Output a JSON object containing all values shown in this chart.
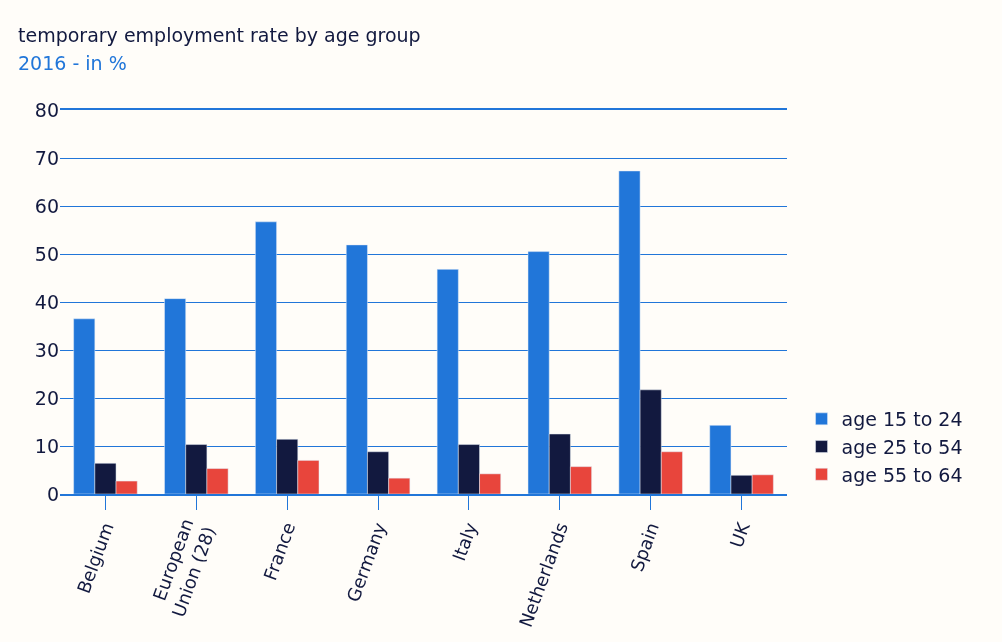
{
  "chart_data": {
    "type": "bar",
    "title": "temporary employment rate by age group",
    "subtitle": "2016 - in %",
    "categories": [
      "Belgium",
      "European\nUnion (28)",
      "France",
      "Germany",
      "Italy",
      "Netherlands",
      "Spain",
      "UK"
    ],
    "series": [
      {
        "name": "age 15 to 24",
        "color": "#2176d9",
        "values": [
          36.5,
          40.7,
          56.7,
          51.9,
          46.8,
          50.5,
          67.3,
          14.3
        ]
      },
      {
        "name": "age 25 to 54",
        "color": "#12193f",
        "values": [
          6.4,
          10.3,
          11.4,
          8.8,
          10.3,
          12.5,
          21.7,
          3.9
        ]
      },
      {
        "name": "age 55 to 64",
        "color": "#e8453c",
        "values": [
          2.7,
          5.3,
          7.0,
          3.3,
          4.2,
          5.7,
          8.8,
          4.0
        ]
      }
    ],
    "ylim": [
      0,
      80
    ],
    "yticks": [
      0,
      10,
      20,
      30,
      40,
      50,
      60,
      70,
      80
    ],
    "grid": "y",
    "legend": "bottom right"
  }
}
